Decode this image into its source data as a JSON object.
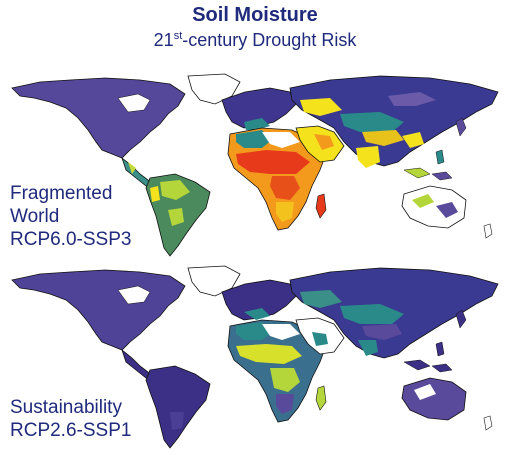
{
  "header": {
    "title": "Soil Moisture",
    "subtitle_sup": "st",
    "subtitle_pre": "21",
    "subtitle_post": "-century Drought Risk"
  },
  "panels": [
    {
      "id": "fragmented",
      "label_lines": [
        "Fragmented",
        "World",
        "RCP6.0-SSP3"
      ]
    },
    {
      "id": "sustainability",
      "label_lines": [
        "Sustainability",
        "RCP2.6-SSP1"
      ]
    }
  ],
  "colors": {
    "text": "#1f2a7c",
    "coast": "#111111",
    "risk_very_low": "#3b2f86",
    "risk_low": "#5a4a9c",
    "risk_moderate": "#2a8a8a",
    "risk_elevated": "#b5d63a",
    "risk_high": "#f4e21c",
    "risk_very_high": "#f39a1c",
    "risk_extreme": "#e63a1a",
    "no_data": "#ffffff"
  }
}
